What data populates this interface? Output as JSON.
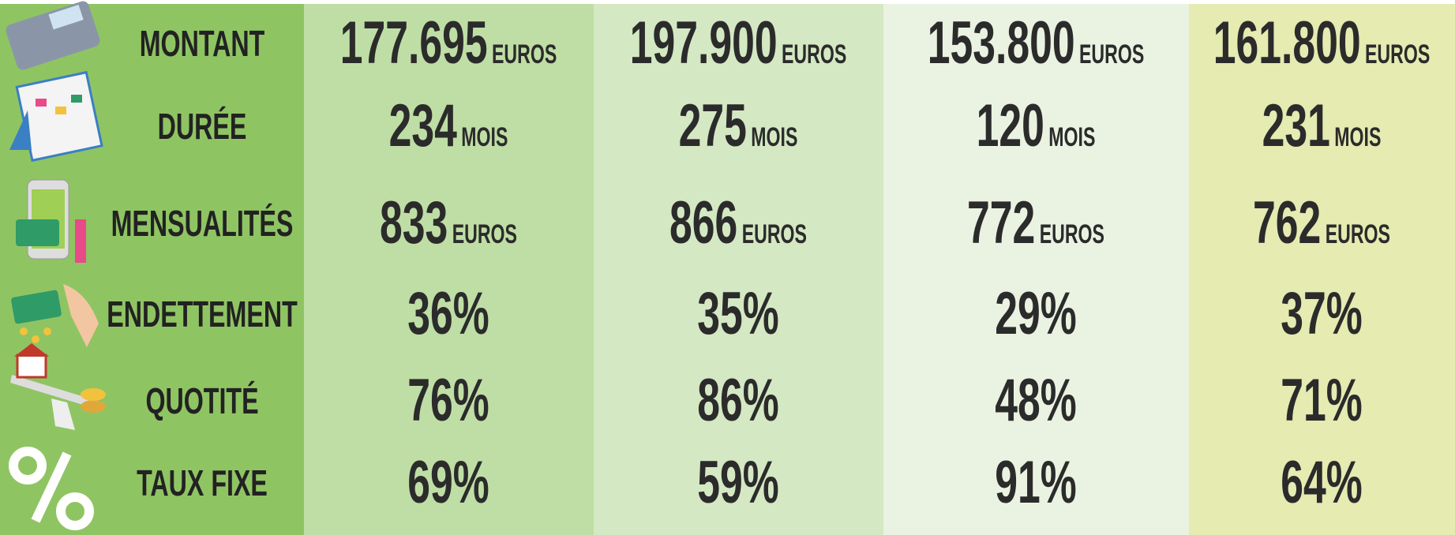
{
  "table": {
    "rows": [
      {
        "label": "MONTANT",
        "cells": [
          {
            "value": "177.695",
            "unit": "EUROS"
          },
          {
            "value": "197.900",
            "unit": "EUROS"
          },
          {
            "value": "153.800",
            "unit": "EUROS"
          },
          {
            "value": "161.800",
            "unit": "EUROS"
          }
        ]
      },
      {
        "label": "DURÉE",
        "cells": [
          {
            "value": "234",
            "unit": "MOIS"
          },
          {
            "value": "275",
            "unit": "MOIS"
          },
          {
            "value": "120",
            "unit": "MOIS"
          },
          {
            "value": "231",
            "unit": "MOIS"
          }
        ]
      },
      {
        "label": "MENSUALITÉS",
        "cells": [
          {
            "value": "833",
            "unit": "EUROS"
          },
          {
            "value": "866",
            "unit": "EUROS"
          },
          {
            "value": "772",
            "unit": "EUROS"
          },
          {
            "value": "762",
            "unit": "EUROS"
          }
        ]
      },
      {
        "label": "ENDETTEMENT",
        "cells": [
          {
            "value": "36%"
          },
          {
            "value": "35%"
          },
          {
            "value": "29%"
          },
          {
            "value": "37%"
          }
        ]
      },
      {
        "label": "QUOTITÉ",
        "cells": [
          {
            "value": "76%"
          },
          {
            "value": "86%"
          },
          {
            "value": "48%"
          },
          {
            "value": "71%"
          }
        ]
      },
      {
        "label": "TAUX FIXE",
        "cells": [
          {
            "value": "69%"
          },
          {
            "value": "59%"
          },
          {
            "value": "91%"
          },
          {
            "value": "64%"
          }
        ]
      }
    ]
  }
}
